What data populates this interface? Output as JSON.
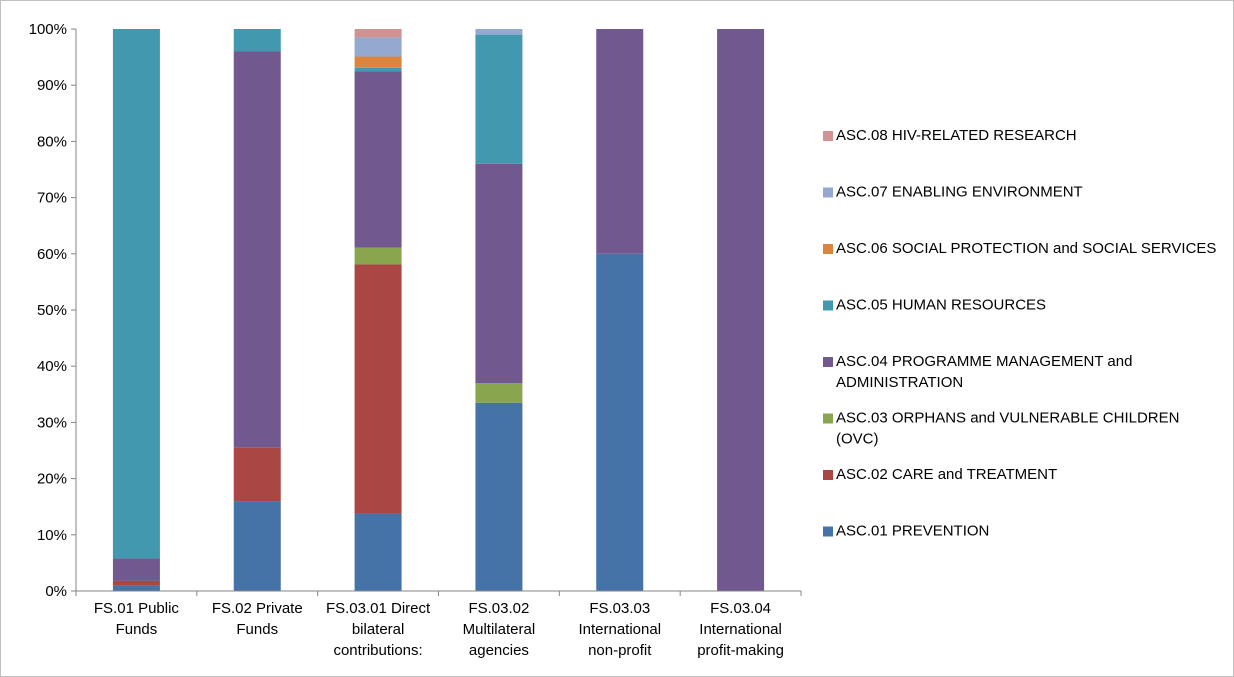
{
  "chart_data": {
    "type": "bar",
    "stacked": true,
    "percent": true,
    "categories": [
      [
        "FS.01 Public",
        "Funds"
      ],
      [
        "FS.02 Private",
        "Funds"
      ],
      [
        "FS.03.01 Direct",
        "bilateral",
        "contributions:"
      ],
      [
        "FS.03.02",
        "Multilateral",
        "agencies"
      ],
      [
        "FS.03.03",
        "International",
        "non-profit"
      ],
      [
        "FS.03.04",
        "International",
        "profit-making"
      ]
    ],
    "yticks": [
      "0%",
      "10%",
      "20%",
      "30%",
      "40%",
      "50%",
      "60%",
      "70%",
      "80%",
      "90%",
      "100%"
    ],
    "ylim": [
      0,
      100
    ],
    "grid": false,
    "legend_position": "right",
    "series": [
      {
        "name": "ASC.01 PREVENTION",
        "legend_lines": [
          "ASC.01 PREVENTION"
        ],
        "color": "#4572A7",
        "values": [
          1.0,
          16.0,
          13.8,
          33.5,
          60.0,
          0
        ]
      },
      {
        "name": "ASC.02 CARE and TREATMENT",
        "legend_lines": [
          "ASC.02 CARE and TREATMENT"
        ],
        "color": "#AA4643",
        "values": [
          0.8,
          9.5,
          44.3,
          0,
          0,
          0
        ]
      },
      {
        "name": "ASC.03 ORPHANS and VULNERABLE CHILDREN (OVC)",
        "legend_lines": [
          "ASC.03 ORPHANS and VULNERABLE CHILDREN",
          "(OVC)"
        ],
        "color": "#89A54E",
        "values": [
          0,
          0,
          3.0,
          3.5,
          0,
          0
        ]
      },
      {
        "name": "ASC.04 PROGRAMME MANAGEMENT and ADMINISTRATION",
        "legend_lines": [
          "ASC.04 PROGRAMME MANAGEMENT and",
          "ADMINISTRATION"
        ],
        "color": "#71588F",
        "values": [
          4.0,
          70.5,
          31.4,
          39.0,
          40.0,
          100.0
        ]
      },
      {
        "name": "ASC.05 HUMAN RESOURCES",
        "legend_lines": [
          "ASC.05 HUMAN RESOURCES"
        ],
        "color": "#4198AF",
        "values": [
          94.2,
          4.0,
          0.6,
          23.0,
          0,
          0
        ]
      },
      {
        "name": "ASC.06 SOCIAL PROTECTION and SOCIAL SERVICES",
        "legend_lines": [
          "ASC.06 SOCIAL PROTECTION and SOCIAL SERVICES"
        ],
        "color": "#DB843D",
        "values": [
          0,
          0,
          2.0,
          0,
          0,
          0
        ]
      },
      {
        "name": "ASC.07 ENABLING ENVIRONMENT",
        "legend_lines": [
          "ASC.07 ENABLING ENVIRONMENT"
        ],
        "color": "#93A9CF",
        "values": [
          0,
          0,
          3.4,
          1.0,
          0,
          0
        ]
      },
      {
        "name": "ASC.08 HIV-RELATED RESEARCH",
        "legend_lines": [
          "ASC.08 HIV-RELATED RESEARCH"
        ],
        "color": "#D19392",
        "values": [
          0,
          0,
          1.5,
          0,
          0,
          0
        ]
      }
    ]
  }
}
